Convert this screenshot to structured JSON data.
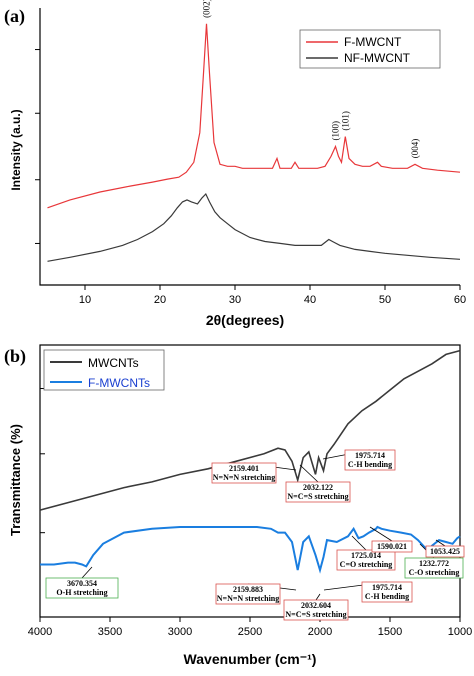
{
  "chart_data": [
    {
      "panel": "(a)",
      "type": "line",
      "xlabel": "2θ(degrees)",
      "ylabel": "Intensity (a.u.)",
      "xlim": [
        4,
        60
      ],
      "xticks": [
        10,
        20,
        30,
        40,
        50,
        60
      ],
      "legend": "top-right",
      "series": [
        {
          "name": "F-MWCNT",
          "color": "#e8373a",
          "points": [
            [
              5,
              0.07
            ],
            [
              8,
              0.11
            ],
            [
              12,
              0.15
            ],
            [
              16,
              0.18
            ],
            [
              19,
              0.2
            ],
            [
              21,
              0.215
            ],
            [
              22.5,
              0.225
            ],
            [
              23.5,
              0.25
            ],
            [
              24.5,
              0.3
            ],
            [
              25.3,
              0.45
            ],
            [
              25.8,
              0.75
            ],
            [
              26.2,
              1.0
            ],
            [
              26.6,
              0.75
            ],
            [
              27.2,
              0.4
            ],
            [
              28,
              0.29
            ],
            [
              29,
              0.28
            ],
            [
              30,
              0.28
            ],
            [
              31,
              0.27
            ],
            [
              33,
              0.27
            ],
            [
              35,
              0.27
            ],
            [
              35.6,
              0.32
            ],
            [
              36,
              0.27
            ],
            [
              37.5,
              0.27
            ],
            [
              38,
              0.3
            ],
            [
              38.5,
              0.27
            ],
            [
              40,
              0.27
            ],
            [
              41,
              0.27
            ],
            [
              42,
              0.28
            ],
            [
              42.8,
              0.33
            ],
            [
              43.4,
              0.38
            ],
            [
              43.8,
              0.33
            ],
            [
              44.2,
              0.3
            ],
            [
              44.7,
              0.43
            ],
            [
              45.2,
              0.32
            ],
            [
              46,
              0.29
            ],
            [
              47,
              0.28
            ],
            [
              48,
              0.28
            ],
            [
              49,
              0.3
            ],
            [
              49.5,
              0.28
            ],
            [
              51,
              0.27
            ],
            [
              52,
              0.27
            ],
            [
              53,
              0.27
            ],
            [
              54,
              0.29
            ],
            [
              55,
              0.27
            ],
            [
              57,
              0.26
            ],
            [
              60,
              0.25
            ]
          ]
        },
        {
          "name": "NF-MWCNT",
          "color": "#3a3a3a",
          "points": [
            [
              5,
              -0.2
            ],
            [
              8,
              -0.18
            ],
            [
              12,
              -0.15
            ],
            [
              15,
              -0.12
            ],
            [
              17,
              -0.09
            ],
            [
              19,
              -0.05
            ],
            [
              20.5,
              -0.01
            ],
            [
              21.5,
              0.03
            ],
            [
              22.3,
              0.07
            ],
            [
              23,
              0.1
            ],
            [
              23.6,
              0.11
            ],
            [
              24.2,
              0.1
            ],
            [
              25,
              0.09
            ],
            [
              25.6,
              0.12
            ],
            [
              26.1,
              0.14
            ],
            [
              26.6,
              0.1
            ],
            [
              27.3,
              0.05
            ],
            [
              28,
              0.02
            ],
            [
              29,
              -0.01
            ],
            [
              30,
              -0.04
            ],
            [
              32,
              -0.08
            ],
            [
              34,
              -0.1
            ],
            [
              36,
              -0.11
            ],
            [
              38,
              -0.12
            ],
            [
              40,
              -0.12
            ],
            [
              41.5,
              -0.12
            ],
            [
              42.5,
              -0.09
            ],
            [
              43,
              -0.1
            ],
            [
              44,
              -0.12
            ],
            [
              46,
              -0.14
            ],
            [
              48,
              -0.15
            ],
            [
              50,
              -0.16
            ],
            [
              53,
              -0.17
            ],
            [
              56,
              -0.18
            ],
            [
              60,
              -0.19
            ]
          ]
        }
      ],
      "peak_labels": [
        {
          "text": "(002)",
          "x": 26.2
        },
        {
          "text": "(100)",
          "x": 43.4
        },
        {
          "text": "(101)",
          "x": 44.7
        },
        {
          "text": "(004)",
          "x": 54.0
        }
      ]
    },
    {
      "panel": "(b)",
      "type": "line",
      "xlabel": "Wavenumber (cm⁻¹)",
      "ylabel": "Transmittance (%)",
      "xlim": [
        4000,
        1000
      ],
      "xticks": [
        4000,
        3500,
        3000,
        2500,
        2000,
        1500,
        1000
      ],
      "legend": "top-left",
      "series": [
        {
          "name": "MWCNTs",
          "color": "#3a3a3a",
          "points": [
            [
              4000,
              0.12
            ],
            [
              3800,
              0.16
            ],
            [
              3600,
              0.2
            ],
            [
              3400,
              0.24
            ],
            [
              3200,
              0.27
            ],
            [
              3000,
              0.31
            ],
            [
              2800,
              0.34
            ],
            [
              2600,
              0.38
            ],
            [
              2400,
              0.42
            ],
            [
              2300,
              0.45
            ],
            [
              2250,
              0.44
            ],
            [
              2200,
              0.38
            ],
            [
              2159,
              0.28
            ],
            [
              2120,
              0.4
            ],
            [
              2080,
              0.43
            ],
            [
              2032,
              0.31
            ],
            [
              2010,
              0.4
            ],
            [
              1975,
              0.33
            ],
            [
              1950,
              0.42
            ],
            [
              1900,
              0.47
            ],
            [
              1800,
              0.58
            ],
            [
              1700,
              0.65
            ],
            [
              1600,
              0.7
            ],
            [
              1500,
              0.76
            ],
            [
              1400,
              0.82
            ],
            [
              1300,
              0.86
            ],
            [
              1200,
              0.9
            ],
            [
              1100,
              0.95
            ],
            [
              1000,
              0.97
            ]
          ]
        },
        {
          "name": "F-MWCNTs",
          "color": "#1a7ee0",
          "points": [
            [
              4000,
              -0.17
            ],
            [
              3900,
              -0.17
            ],
            [
              3800,
              -0.16
            ],
            [
              3750,
              -0.16
            ],
            [
              3700,
              -0.17
            ],
            [
              3670,
              -0.18
            ],
            [
              3620,
              -0.12
            ],
            [
              3550,
              -0.06
            ],
            [
              3400,
              0.0
            ],
            [
              3200,
              0.02
            ],
            [
              3000,
              0.03
            ],
            [
              2800,
              0.03
            ],
            [
              2600,
              0.03
            ],
            [
              2450,
              0.03
            ],
            [
              2350,
              0.02
            ],
            [
              2300,
              0.0
            ],
            [
              2250,
              0.0
            ],
            [
              2200,
              -0.05
            ],
            [
              2159,
              -0.2
            ],
            [
              2120,
              -0.05
            ],
            [
              2080,
              -0.02
            ],
            [
              2032,
              -0.12
            ],
            [
              2000,
              -0.2
            ],
            [
              1975,
              -0.13
            ],
            [
              1950,
              -0.04
            ],
            [
              1880,
              -0.05
            ],
            [
              1800,
              -0.02
            ],
            [
              1760,
              0.02
            ],
            [
              1725,
              -0.03
            ],
            [
              1690,
              -0.02
            ],
            [
              1650,
              0.0
            ],
            [
              1600,
              0.02
            ],
            [
              1590,
              0.03
            ],
            [
              1560,
              0.02
            ],
            [
              1500,
              0.01
            ],
            [
              1420,
              0.0
            ],
            [
              1350,
              -0.01
            ],
            [
              1300,
              -0.04
            ],
            [
              1250,
              -0.08
            ],
            [
              1232,
              -0.1
            ],
            [
              1200,
              -0.07
            ],
            [
              1150,
              -0.04
            ],
            [
              1100,
              -0.05
            ],
            [
              1053,
              -0.06
            ],
            [
              1020,
              -0.03
            ],
            [
              1000,
              -0.02
            ]
          ]
        }
      ],
      "annotations": [
        {
          "value": "2159.401",
          "desc": "N=N=N stretching",
          "color": "#d9534f"
        },
        {
          "value": "2032.122",
          "desc": "N=C=S stretching",
          "color": "#d9534f"
        },
        {
          "value": "1975.714",
          "desc": "C-H bending",
          "color": "#d9534f"
        },
        {
          "value": "3670.354",
          "desc": "O-H stretching",
          "color": "#4caf50"
        },
        {
          "value": "2159.883",
          "desc": "N=N=N stretching",
          "color": "#d9534f"
        },
        {
          "value": "2032.604",
          "desc": "N=C=S stretching",
          "color": "#d9534f"
        },
        {
          "value": "1975.714",
          "desc": "C-H bending",
          "color": "#d9534f"
        },
        {
          "value": "1725.014",
          "desc": "C=O stretching",
          "color": "#d9534f"
        },
        {
          "value": "1590.021",
          "desc": "",
          "color": "#d9534f"
        },
        {
          "value": "1232.772",
          "desc": "C-O stretching",
          "color": "#4caf50"
        },
        {
          "value": "1053.425",
          "desc": "",
          "color": "#d9534f"
        }
      ]
    }
  ]
}
